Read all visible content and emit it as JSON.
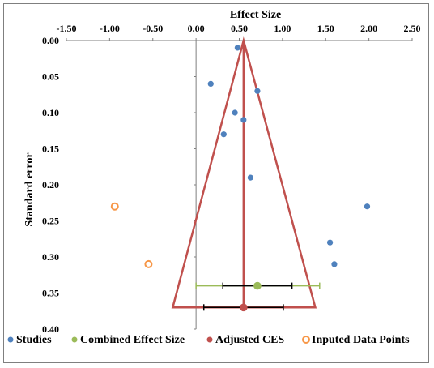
{
  "chart_data": {
    "type": "scatter",
    "xlabel": "Effect Size",
    "ylabel": "Standard error",
    "xlim": [
      -1.5,
      2.5
    ],
    "ylim": [
      0,
      0.4
    ],
    "y_reversed": true,
    "x_axis_position": "top",
    "x_ticks": [
      "-1.50",
      "-1.00",
      "-0.50",
      "0.00",
      "0.50",
      "1.00",
      "1.50",
      "2.00",
      "2.50"
    ],
    "y_ticks": [
      "0.00",
      "0.05",
      "0.10",
      "0.15",
      "0.20",
      "0.25",
      "0.30",
      "0.35",
      "0.40"
    ],
    "legend_position": "bottom",
    "series": [
      {
        "name": "Studies",
        "kind": "points",
        "color": "#4f81bd",
        "points": [
          {
            "x": 0.48,
            "y": 0.01
          },
          {
            "x": 0.17,
            "y": 0.06
          },
          {
            "x": 0.71,
            "y": 0.07
          },
          {
            "x": 0.45,
            "y": 0.1
          },
          {
            "x": 0.55,
            "y": 0.11
          },
          {
            "x": 0.32,
            "y": 0.13
          },
          {
            "x": 0.63,
            "y": 0.19
          },
          {
            "x": 1.98,
            "y": 0.23
          },
          {
            "x": 1.55,
            "y": 0.28
          },
          {
            "x": 1.6,
            "y": 0.31
          }
        ]
      },
      {
        "name": "Combined Effect Size",
        "kind": "estimate",
        "color": "#9bbb59",
        "x": 0.71,
        "y": 0.34,
        "ci": [
          0.31,
          1.11
        ],
        "pi": [
          0.0,
          1.43
        ]
      },
      {
        "name": "Adjusted CES",
        "kind": "estimate",
        "color": "#c0504d",
        "x": 0.55,
        "y": 0.37,
        "ci": [
          0.09,
          1.01
        ],
        "funnel": {
          "apex_y": 0.0,
          "base_y": 0.37,
          "left_x": -0.27,
          "right_x": 1.38
        }
      },
      {
        "name": "Inputed Data Points",
        "kind": "points",
        "color": "#f79646",
        "hollow": true,
        "points": [
          {
            "x": -0.94,
            "y": 0.23
          },
          {
            "x": -0.55,
            "y": 0.31
          }
        ]
      }
    ]
  }
}
